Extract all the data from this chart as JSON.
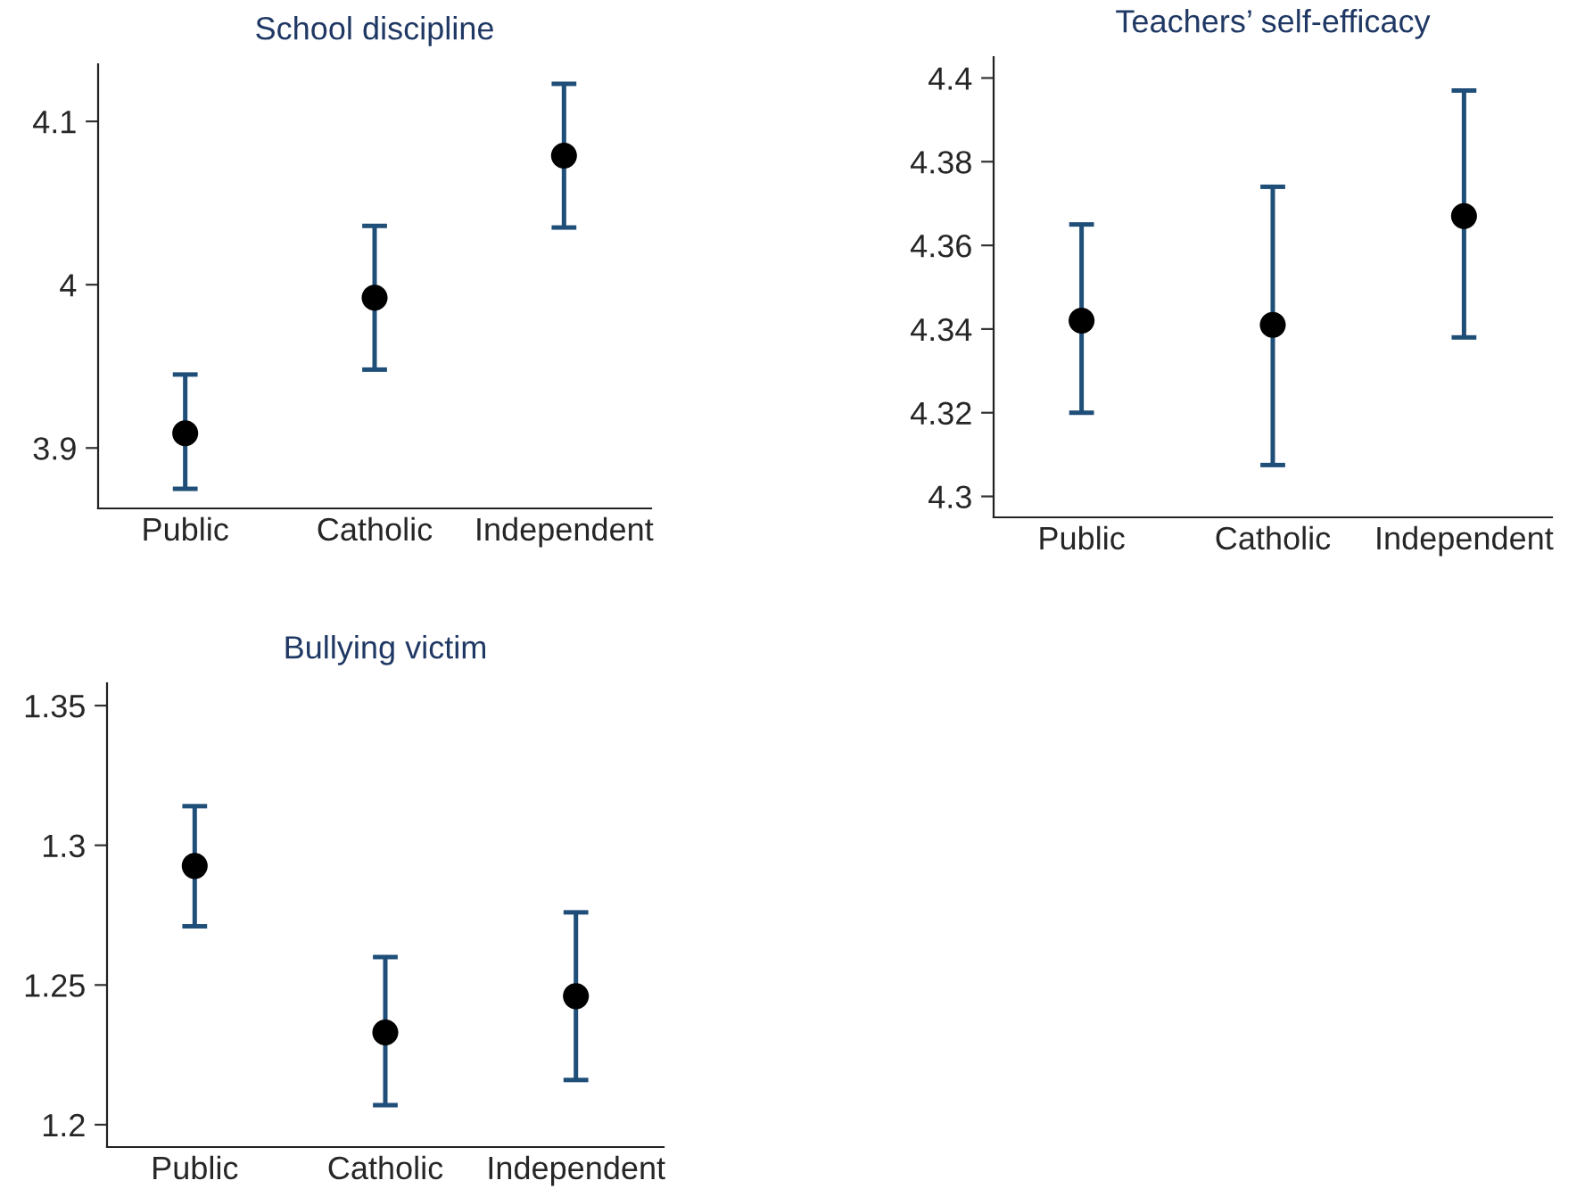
{
  "chart_data": [
    {
      "type": "scatter",
      "title": "School discipline",
      "categories": [
        "Public",
        "Catholic",
        "Independent"
      ],
      "marker": "circle",
      "grid": false,
      "legend": false,
      "series": [
        {
          "color": "#000000",
          "values": [
            3.909,
            3.992,
            4.079
          ],
          "errors": [
            [
              3.875,
              3.945
            ],
            [
              3.948,
              4.036
            ],
            [
              4.035,
              4.123
            ]
          ]
        }
      ],
      "ylim": [
        3.863,
        4.135
      ],
      "yticks": [
        3.9,
        4,
        4.1
      ]
    },
    {
      "type": "scatter",
      "title": "Teachers’ self-efficacy",
      "categories": [
        "Public",
        "Catholic",
        "Independent"
      ],
      "marker": "circle",
      "grid": false,
      "legend": false,
      "series": [
        {
          "color": "#000000",
          "values": [
            4.342,
            4.341,
            4.367
          ],
          "errors": [
            [
              4.32,
              4.365
            ],
            [
              4.3075,
              4.374
            ],
            [
              4.338,
              4.397
            ]
          ]
        }
      ],
      "ylim": [
        4.295,
        4.405
      ],
      "yticks": [
        4.3,
        4.32,
        4.34,
        4.36,
        4.38,
        4.4
      ]
    },
    {
      "type": "scatter",
      "title": "Bullying victim",
      "categories": [
        "Public",
        "Catholic",
        "Independent"
      ],
      "marker": "circle",
      "grid": false,
      "legend": false,
      "series": [
        {
          "color": "#000000",
          "values": [
            1.2926,
            1.233,
            1.246
          ],
          "errors": [
            [
              1.271,
              1.314
            ],
            [
              1.207,
              1.26
            ],
            [
              1.216,
              1.276
            ]
          ]
        }
      ],
      "ylim": [
        1.192,
        1.358
      ],
      "yticks": [
        1.2,
        1.25,
        1.3,
        1.35
      ]
    }
  ]
}
